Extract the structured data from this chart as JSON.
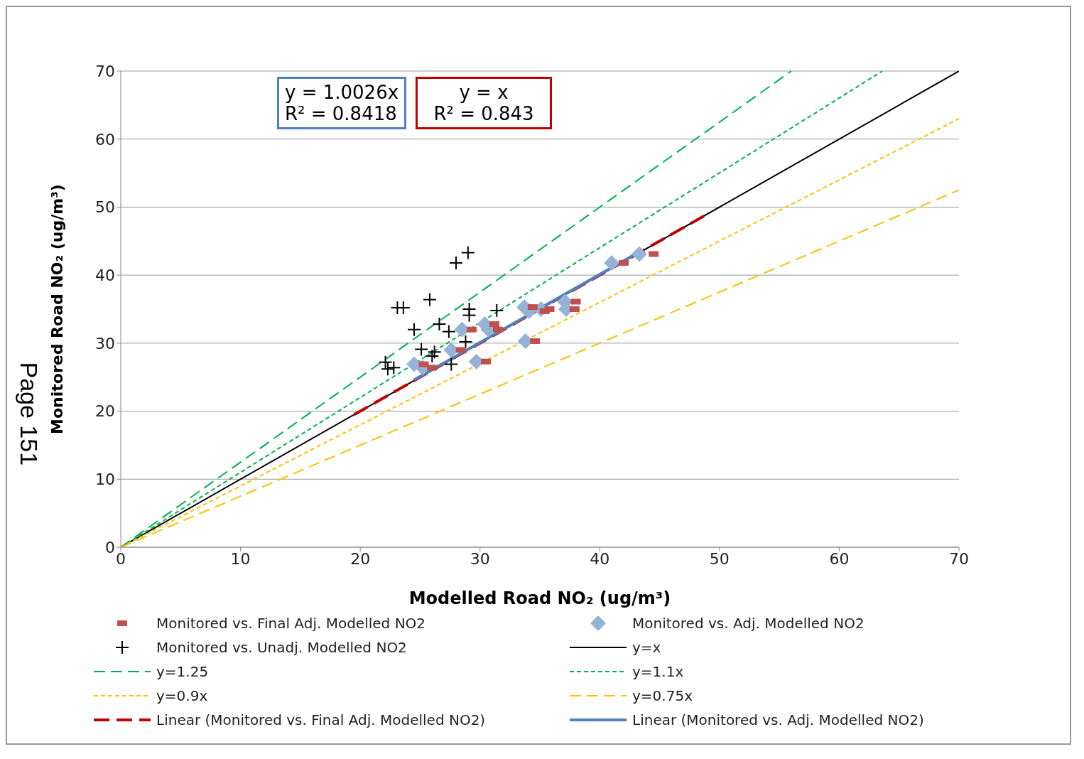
{
  "chart_data": {
    "type": "scatter",
    "xlabel": "Modelled Road NO₂ (ug/m³)",
    "ylabel": "Monitored Road NO₂ (ug/m³)",
    "xlim": [
      0,
      70
    ],
    "ylim": [
      0,
      70
    ],
    "xticks": [
      0,
      10,
      20,
      30,
      40,
      50,
      60,
      70
    ],
    "yticks": [
      0,
      10,
      20,
      30,
      40,
      50,
      60,
      70
    ],
    "grid": "y",
    "legend": "bottom",
    "annotations": [
      "y = 1.0026x\nR² = 0.8418",
      "y = x\nR² = 0.843",
      "Page 151"
    ],
    "series": [
      {
        "name": "Monitored vs. Final Adj. Modelled NO2",
        "marker": "square",
        "color": "#c0504d",
        "x": [
          25.3,
          26.0,
          28.4,
          29.3,
          30.5,
          31.2,
          31.5,
          34.4,
          35.4,
          35.8,
          38.0,
          37.9,
          34.6,
          42.0,
          44.5
        ],
        "values": [
          26.9,
          26.4,
          29.0,
          32.0,
          27.3,
          32.8,
          32.0,
          35.3,
          34.7,
          35.0,
          36.1,
          35.0,
          30.3,
          41.8,
          43.1
        ]
      },
      {
        "name": "Monitored vs. Adj. Modelled NO2",
        "marker": "diamond",
        "color": "#95b3d7",
        "x": [
          24.5,
          25.2,
          27.6,
          28.5,
          29.7,
          30.4,
          30.7,
          33.7,
          34.1,
          35.1,
          37.1,
          37.2,
          33.8,
          41.0,
          43.3
        ],
        "values": [
          26.9,
          26.4,
          29.0,
          32.0,
          27.3,
          32.8,
          32.0,
          35.3,
          34.7,
          35.0,
          36.1,
          35.0,
          30.3,
          41.8,
          43.1
        ]
      },
      {
        "name": "Monitored vs. Unadj. Modelled NO2",
        "marker": "cross",
        "color": "#000000",
        "x": [
          22.1,
          22.3,
          22.8,
          23.1,
          23.6,
          24.5,
          25.1,
          25.8,
          26.0,
          26.2,
          26.6,
          27.4,
          27.6,
          28.0,
          29.0,
          29.1,
          29.1,
          28.8,
          31.4
        ],
        "values": [
          27.2,
          26.2,
          26.4,
          35.2,
          35.2,
          32.0,
          29.1,
          36.4,
          28.1,
          28.7,
          32.8,
          31.7,
          26.9,
          41.8,
          43.3,
          35.0,
          34.1,
          30.2,
          34.8
        ]
      },
      {
        "name": "y=x",
        "type": "line",
        "line_style": "solid",
        "color": "#000000",
        "x": [
          0,
          70
        ],
        "values": [
          0,
          70
        ]
      },
      {
        "name": "y=1.25",
        "type": "line",
        "line_style": "dashed",
        "color": "#00b050",
        "x": [
          0,
          56
        ],
        "values": [
          0,
          70
        ]
      },
      {
        "name": "y=1.1x",
        "type": "line",
        "line_style": "dotted",
        "color": "#00b050",
        "x": [
          0,
          63.6
        ],
        "values": [
          0,
          70
        ]
      },
      {
        "name": "y=0.9x",
        "type": "line",
        "line_style": "dotted",
        "color": "#ffc000",
        "x": [
          0,
          70
        ],
        "values": [
          0,
          63
        ]
      },
      {
        "name": "y=0.75x",
        "type": "line",
        "line_style": "dashed",
        "color": "#ffc000",
        "x": [
          0,
          70
        ],
        "values": [
          0,
          52.5
        ]
      },
      {
        "name": "Linear (Monitored vs. Final Adj. Modelled NO2)",
        "type": "line",
        "line_style": "dashed",
        "color": "#c00000",
        "x": [
          19.5,
          49
        ],
        "values": [
          19.5,
          49
        ]
      },
      {
        "name": "Linear (Monitored vs. Adj. Modelled NO2)",
        "type": "line",
        "line_style": "solid",
        "color": "#4f81bd",
        "x": [
          24.5,
          43.3
        ],
        "values": [
          24.6,
          43.4
        ]
      }
    ]
  }
}
